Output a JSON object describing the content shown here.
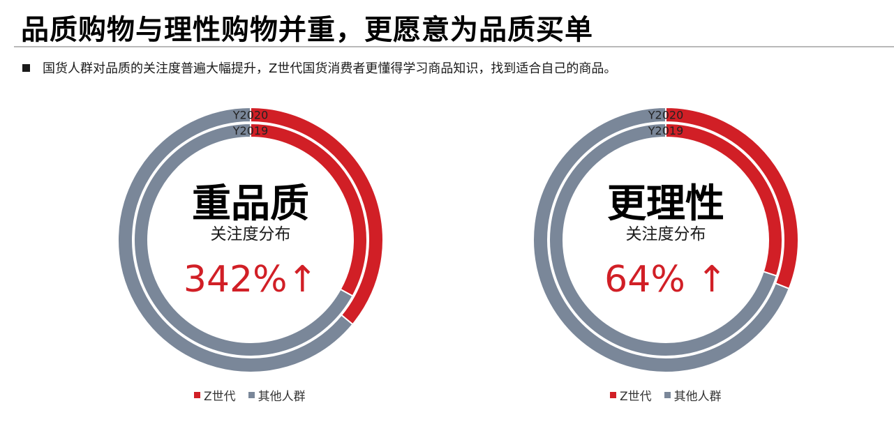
{
  "header": {
    "title": "品质购物与理性购物并重，更愿意为品质买单",
    "bullet": "国货人群对品质的关注度普遍大幅提升，Z世代国货消费者更懂得学习商品知识，找到适合自己的商品。"
  },
  "colors": {
    "z_gen": "#d11f26",
    "others": "#7a8799",
    "growth_text": "#d11f26"
  },
  "chart_data": [
    {
      "type": "pie",
      "variant": "nested-donut",
      "center_title": "重品质",
      "center_subtitle": "关注度分布",
      "growth": "342%↑",
      "ring_labels": [
        "Y2020",
        "Y2019"
      ],
      "categories": [
        "Z世代",
        "其他人群"
      ],
      "series": [
        {
          "name": "Y2020",
          "values": [
            36,
            64
          ]
        },
        {
          "name": "Y2019",
          "values": [
            33,
            67
          ]
        }
      ],
      "legend": [
        "Z世代",
        "其他人群"
      ]
    },
    {
      "type": "pie",
      "variant": "nested-donut",
      "center_title": "更理性",
      "center_subtitle": "关注度分布",
      "growth": "64% ↑",
      "ring_labels": [
        "Y2020",
        "Y2019"
      ],
      "categories": [
        "Z世代",
        "其他人群"
      ],
      "series": [
        {
          "name": "Y2020",
          "values": [
            31,
            69
          ]
        },
        {
          "name": "Y2019",
          "values": [
            30,
            70
          ]
        }
      ],
      "legend": [
        "Z世代",
        "其他人群"
      ]
    }
  ]
}
